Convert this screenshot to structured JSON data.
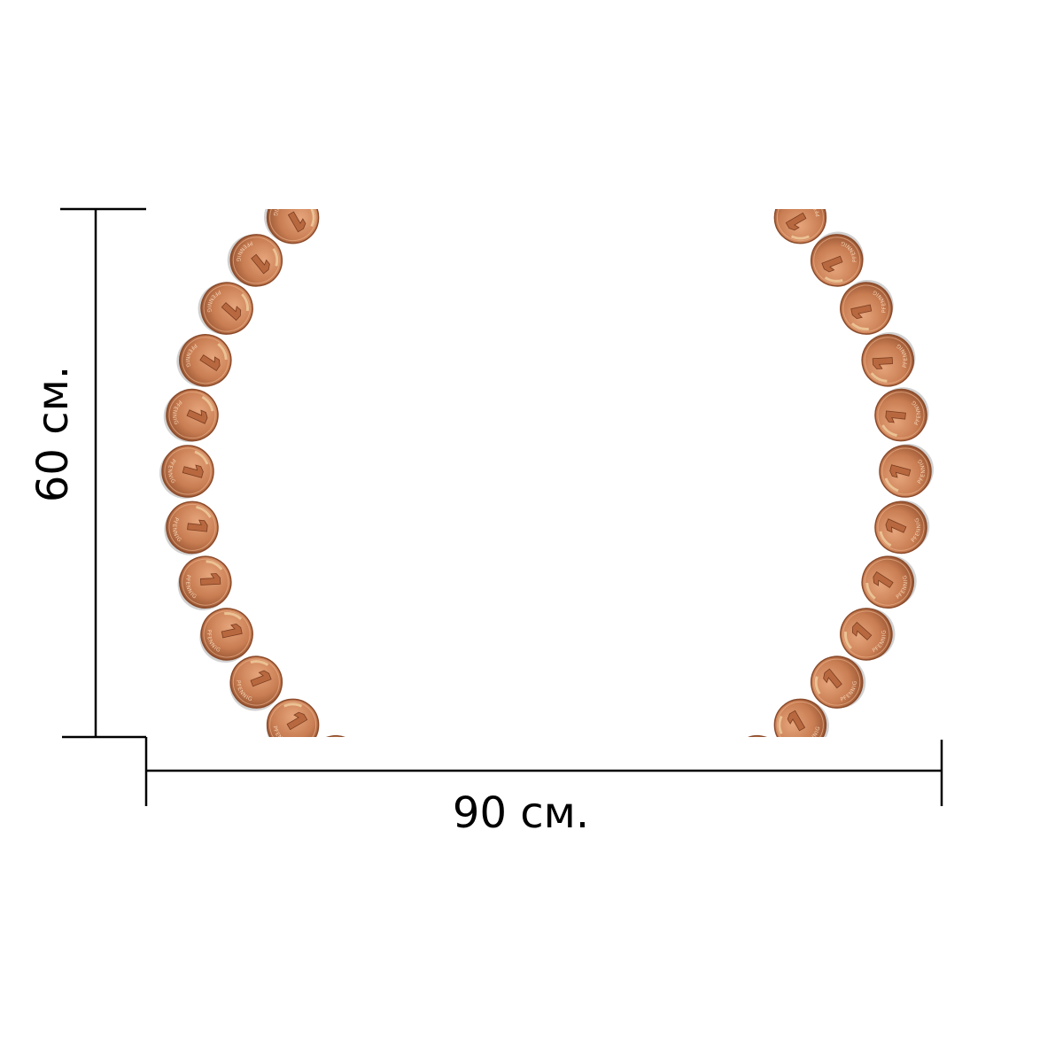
{
  "dimensions": {
    "width_label": "90 см.",
    "height_label": "60 см."
  },
  "artwork": {
    "subject": "coin-ring",
    "coin_denomination": "1",
    "coin_text": "PFENNIG",
    "coin_count_full_ring": 40,
    "colors": {
      "coin_light": "#e6a57c",
      "coin_mid": "#c97d52",
      "coin_dark": "#8f4f2e",
      "background": "#ffffff",
      "dimension_line": "#000000"
    }
  }
}
